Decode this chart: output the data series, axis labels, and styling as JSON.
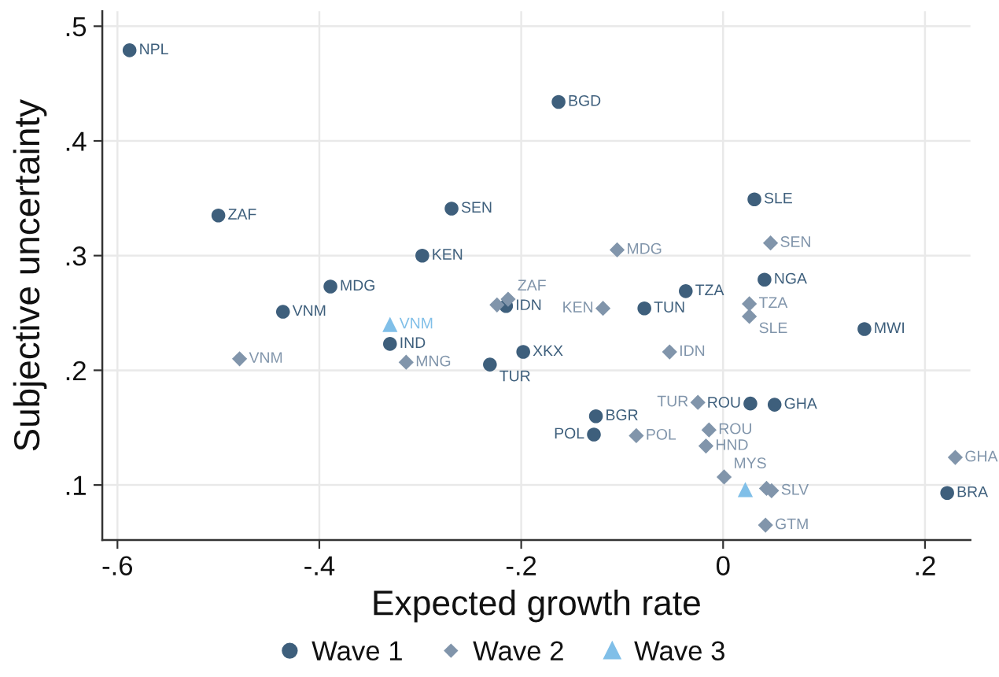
{
  "chart_data": {
    "type": "scatter",
    "xlabel": "Expected growth rate",
    "ylabel": "Subjective uncertainty",
    "xlim": [
      -0.615,
      0.245
    ],
    "ylim": [
      0.052,
      0.513
    ],
    "xticks": [
      {
        "value": -0.6,
        "label": "-.6"
      },
      {
        "value": -0.4,
        "label": "-.4"
      },
      {
        "value": -0.2,
        "label": "-.2"
      },
      0,
      {
        "value": 0.2,
        "label": ".2"
      }
    ],
    "yticks": [
      {
        "value": 0.1,
        "label": ".1"
      },
      {
        "value": 0.2,
        "label": ".2"
      },
      {
        "value": 0.3,
        "label": ".3"
      },
      {
        "value": 0.4,
        "label": ".4"
      },
      {
        "value": 0.5,
        "label": ".5"
      }
    ],
    "grid": true,
    "legend": "bottom",
    "series": [
      {
        "name": "Wave 1",
        "color": "#3e5f7c",
        "marker": "circle",
        "x": [
          -0.588,
          -0.5,
          -0.389,
          -0.436,
          -0.163,
          -0.269,
          -0.298,
          -0.33,
          -0.231,
          -0.198,
          -0.215,
          -0.126,
          -0.128,
          -0.078,
          -0.037,
          0.031,
          0.041,
          0.14,
          0.027,
          0.051,
          0.222
        ],
        "values": [
          0.479,
          0.335,
          0.273,
          0.251,
          0.434,
          0.341,
          0.3,
          0.223,
          0.205,
          0.216,
          0.256,
          0.16,
          0.144,
          0.254,
          0.269,
          0.349,
          0.279,
          0.236,
          0.171,
          0.17,
          0.093
        ],
        "value_labels": [
          "NPL",
          "ZAF",
          "MDG",
          "VNM",
          "BGD",
          "SEN",
          "KEN",
          "IND",
          "TUR",
          "XKX",
          "IDN",
          "BGR",
          "POL",
          "TUN",
          "TZA",
          "SLE",
          "NGA",
          "MWI",
          "ROU",
          "GHA",
          "BRA"
        ]
      },
      {
        "name": "Wave 2",
        "color": "#8195ab",
        "marker": "diamond",
        "x": [
          -0.479,
          -0.314,
          -0.224,
          -0.213,
          -0.119,
          -0.105,
          -0.086,
          -0.053,
          -0.025,
          -0.014,
          -0.017,
          0.001,
          0.026,
          0.026,
          0.047,
          0.043,
          0.048,
          0.042,
          0.23
        ],
        "values": [
          0.21,
          0.207,
          0.257,
          0.262,
          0.254,
          0.305,
          0.143,
          0.216,
          0.172,
          0.148,
          0.134,
          0.107,
          0.258,
          0.247,
          0.311,
          0.097,
          0.095,
          0.065,
          0.124
        ],
        "value_labels": [
          "VNM",
          "MNG",
          null,
          "ZAF",
          "KEN",
          "MDG",
          "POL",
          "IDN",
          "TUR",
          "ROU",
          "HND",
          "MYS",
          "TZA",
          "SLE",
          "SEN",
          null,
          "SLV",
          "GTM",
          "GHA"
        ]
      },
      {
        "name": "Wave 3",
        "color": "#80bfe8",
        "marker": "triangle",
        "x": [
          -0.33,
          0.022
        ],
        "values": [
          0.24,
          0.096
        ],
        "value_labels": [
          "VNM",
          null
        ]
      }
    ]
  }
}
